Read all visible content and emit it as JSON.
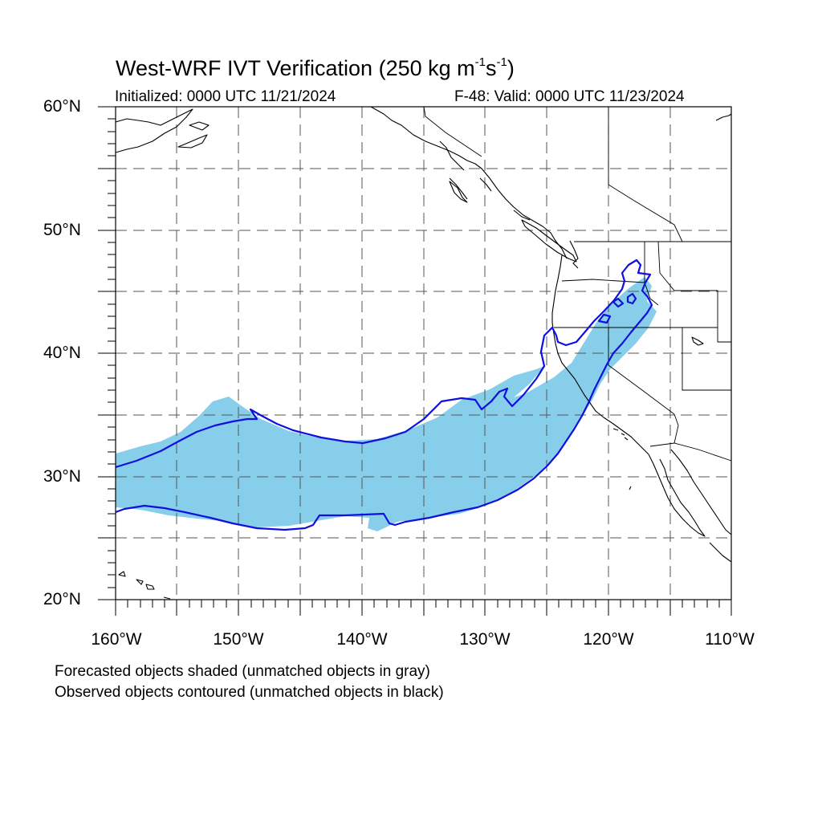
{
  "title": {
    "main": "West-WRF IVT Verification (250 kg m",
    "exp1": "-1",
    "mid": "s",
    "exp2": "-1",
    "close": ")"
  },
  "subtitle_left": "Initialized: 0000 UTC 11/21/2024",
  "subtitle_right": "F-48: Valid: 0000 UTC 11/23/2024",
  "lat_labels": [
    "60°N",
    "50°N",
    "40°N",
    "30°N",
    "20°N"
  ],
  "lon_labels": [
    "160°W",
    "150°W",
    "140°W",
    "130°W",
    "120°W",
    "110°W"
  ],
  "notes": [
    "Forecasted objects shaded (unmatched objects in gray)",
    "Observed objects contoured (unmatched objects in black)"
  ],
  "map_extent": {
    "lon": [
      -160,
      -110
    ],
    "lat": [
      20,
      60
    ]
  },
  "colors": {
    "forecast_fill": "#87ceeb",
    "observed_contour": "#1010dd",
    "grid": "#555555",
    "coastline": "#000000"
  },
  "grid": {
    "style": "dashed",
    "lon_step": 5,
    "lat_step": 5
  }
}
